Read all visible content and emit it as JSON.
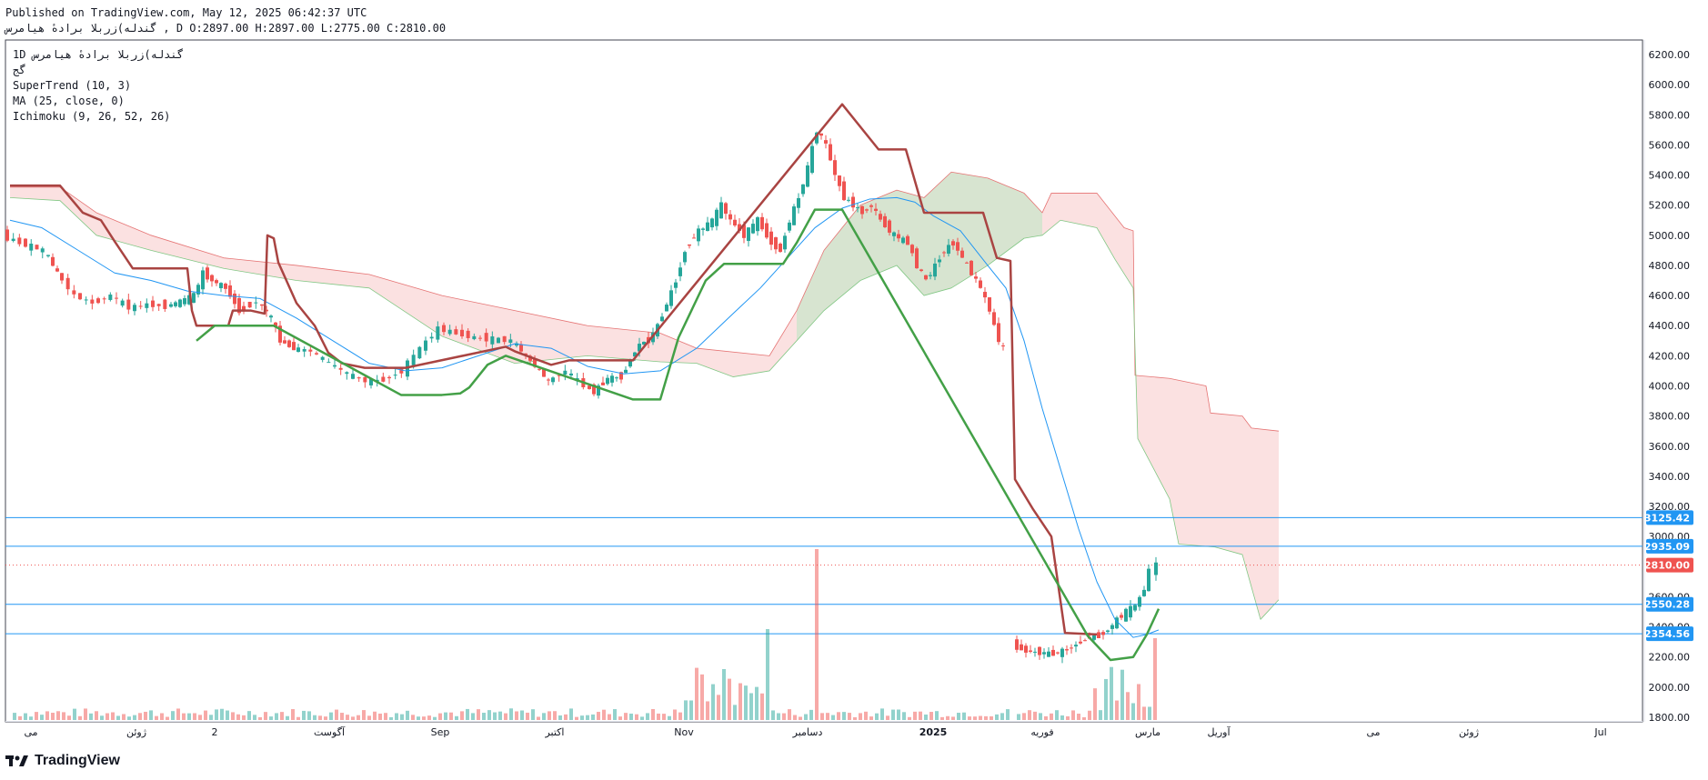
{
  "header": {
    "published": "Published on TradingView.com, May 12, 2025 06:42:37 UTC",
    "symbol_line": "گندله)زربلا برادهٔ هیامرس , D O:2897.00 H:2897.00 L:2775.00 C:2810.00"
  },
  "legend": {
    "symbol": "1D گندله)زربلا برادهٔ هیامرس",
    "market": "گج",
    "indicators": [
      "SuperTrend (10, 3)",
      "MA (25, close, 0)",
      "Ichimoku (9, 26, 52, 26)"
    ]
  },
  "footer": {
    "brand": "TradingView"
  },
  "colors": {
    "up": "#26a69a",
    "down": "#ef5350",
    "supertrend_up": "#43a047",
    "supertrend_down": "#a94442",
    "ma": "#2196f3",
    "cloud_bear": "#f8c9c9",
    "cloud_bull": "#c8e6c9",
    "hline": "#2196f3",
    "last_price": "#ef5350"
  },
  "chart_data": {
    "type": "candlestick",
    "y_axis": {
      "min": 1800,
      "max": 6200,
      "ticks": [
        6200,
        6000,
        5800,
        5600,
        5400,
        5200,
        5000,
        4800,
        4600,
        4400,
        4200,
        4000,
        3800,
        3600,
        3400,
        3200,
        3000,
        2800,
        2600,
        2400,
        2200,
        2000,
        1800
      ]
    },
    "x_axis": {
      "ticks": [
        "می",
        "ژوئن",
        "2",
        "آگوست",
        "Sep",
        "اکتبر",
        "Nov",
        "دسامبر",
        "2025",
        "فوریه",
        "مارس",
        "آوریل",
        "می",
        "ژوئن",
        "Jul"
      ]
    },
    "horizontal_lines": [
      3125.42,
      2935.09,
      2550.28,
      2354.56
    ],
    "price_labels": [
      {
        "value": 3125.42,
        "text": "3125.42"
      },
      {
        "value": 2935.09,
        "text": "2935.09"
      },
      {
        "value": 2810.0,
        "text": "2810.00"
      },
      {
        "value": 2550.28,
        "text": "2550.28"
      },
      {
        "value": 2354.56,
        "text": "2354.56"
      }
    ],
    "last_price": 2810.0,
    "ohlc": {
      "open": 2897.0,
      "high": 2897.0,
      "low": 2775.0,
      "close": 2810.0
    },
    "price_path": [
      [
        0,
        5000
      ],
      [
        20,
        4950
      ],
      [
        45,
        4900
      ],
      [
        60,
        4750
      ],
      [
        80,
        4600
      ],
      [
        100,
        4550
      ],
      [
        120,
        4600
      ],
      [
        140,
        4520
      ],
      [
        160,
        4540
      ],
      [
        180,
        4530
      ],
      [
        195,
        4560
      ],
      [
        210,
        4600
      ],
      [
        220,
        4750
      ],
      [
        230,
        4700
      ],
      [
        245,
        4650
      ],
      [
        260,
        4500
      ],
      [
        280,
        4560
      ],
      [
        295,
        4450
      ],
      [
        305,
        4300
      ],
      [
        320,
        4250
      ],
      [
        340,
        4230
      ],
      [
        360,
        4150
      ],
      [
        380,
        4080
      ],
      [
        400,
        4030
      ],
      [
        420,
        4040
      ],
      [
        440,
        4100
      ],
      [
        460,
        4250
      ],
      [
        480,
        4380
      ],
      [
        500,
        4350
      ],
      [
        520,
        4320
      ],
      [
        540,
        4310
      ],
      [
        560,
        4300
      ],
      [
        575,
        4200
      ],
      [
        590,
        4100
      ],
      [
        600,
        4030
      ],
      [
        620,
        4100
      ],
      [
        640,
        4000
      ],
      [
        650,
        3960
      ],
      [
        665,
        4050
      ],
      [
        680,
        4060
      ],
      [
        690,
        4180
      ],
      [
        700,
        4280
      ],
      [
        710,
        4300
      ],
      [
        720,
        4400
      ],
      [
        730,
        4550
      ],
      [
        740,
        4700
      ],
      [
        750,
        4900
      ],
      [
        760,
        5000
      ],
      [
        770,
        5050
      ],
      [
        780,
        5100
      ],
      [
        790,
        5200
      ],
      [
        800,
        5100
      ],
      [
        815,
        5000
      ],
      [
        830,
        5100
      ],
      [
        845,
        4950
      ],
      [
        855,
        4900
      ],
      [
        865,
        5100
      ],
      [
        875,
        5250
      ],
      [
        885,
        5450
      ],
      [
        895,
        5700
      ],
      [
        905,
        5600
      ],
      [
        915,
        5400
      ],
      [
        925,
        5250
      ],
      [
        935,
        5200
      ],
      [
        945,
        5150
      ],
      [
        955,
        5200
      ],
      [
        965,
        5100
      ],
      [
        980,
        5000
      ],
      [
        995,
        4950
      ],
      [
        1005,
        4800
      ],
      [
        1015,
        4700
      ],
      [
        1025,
        4800
      ],
      [
        1035,
        4900
      ],
      [
        1045,
        4950
      ],
      [
        1055,
        4850
      ],
      [
        1065,
        4750
      ],
      [
        1075,
        4650
      ],
      [
        1085,
        4500
      ],
      [
        1095,
        4300
      ],
      [
        1100,
        4250
      ]
    ],
    "price_path_2": [
      [
        1110,
        2280
      ],
      [
        1125,
        2240
      ],
      [
        1140,
        2230
      ],
      [
        1155,
        2220
      ],
      [
        1170,
        2250
      ],
      [
        1185,
        2300
      ],
      [
        1195,
        2330
      ],
      [
        1205,
        2340
      ],
      [
        1215,
        2380
      ],
      [
        1225,
        2450
      ],
      [
        1235,
        2500
      ],
      [
        1245,
        2540
      ],
      [
        1255,
        2650
      ],
      [
        1263,
        2780
      ],
      [
        1268,
        2810
      ]
    ],
    "supertrend_down": [
      [
        5,
        5330
      ],
      [
        60,
        5330
      ],
      [
        85,
        5150
      ],
      [
        105,
        5100
      ],
      [
        120,
        4960
      ],
      [
        140,
        4780
      ],
      [
        200,
        4780
      ],
      [
        205,
        4500
      ],
      [
        210,
        4400
      ],
      [
        230,
        4400
      ],
      [
        245,
        4400
      ],
      [
        250,
        4500
      ],
      [
        270,
        4500
      ],
      [
        285,
        4480
      ],
      [
        288,
        5000
      ],
      [
        295,
        4980
      ],
      [
        300,
        4820
      ],
      [
        320,
        4550
      ],
      [
        340,
        4400
      ],
      [
        355,
        4220
      ],
      [
        370,
        4150
      ],
      [
        395,
        4120
      ],
      [
        440,
        4120
      ],
      [
        550,
        4260
      ],
      [
        560,
        4230
      ],
      [
        600,
        4140
      ],
      [
        620,
        4170
      ],
      [
        690,
        4170
      ],
      [
        920,
        5870
      ],
      [
        960,
        5570
      ],
      [
        990,
        5570
      ],
      [
        1010,
        5150
      ],
      [
        1075,
        5150
      ],
      [
        1090,
        4850
      ],
      [
        1105,
        4830
      ],
      [
        1110,
        3380
      ],
      [
        1130,
        3180
      ],
      [
        1150,
        3000
      ],
      [
        1165,
        2360
      ],
      [
        1200,
        2350
      ]
    ],
    "supertrend_up": [
      [
        210,
        4300
      ],
      [
        230,
        4400
      ],
      [
        290,
        4400
      ],
      [
        295,
        4400
      ],
      [
        435,
        3940
      ],
      [
        450,
        3940
      ],
      [
        480,
        3940
      ],
      [
        500,
        3950
      ],
      [
        510,
        3990
      ],
      [
        530,
        4140
      ],
      [
        550,
        4200
      ],
      [
        690,
        3910
      ],
      [
        720,
        3910
      ],
      [
        740,
        4320
      ],
      [
        770,
        4700
      ],
      [
        790,
        4810
      ],
      [
        855,
        4810
      ],
      [
        870,
        4950
      ],
      [
        890,
        5170
      ],
      [
        920,
        5170
      ],
      [
        1190,
        2340
      ],
      [
        1215,
        2180
      ],
      [
        1240,
        2200
      ],
      [
        1255,
        2350
      ],
      [
        1268,
        2520
      ]
    ],
    "ma": [
      [
        5,
        5100
      ],
      [
        40,
        5050
      ],
      [
        80,
        4900
      ],
      [
        120,
        4750
      ],
      [
        160,
        4700
      ],
      [
        200,
        4630
      ],
      [
        240,
        4600
      ],
      [
        280,
        4580
      ],
      [
        320,
        4450
      ],
      [
        360,
        4300
      ],
      [
        400,
        4150
      ],
      [
        440,
        4100
      ],
      [
        480,
        4120
      ],
      [
        520,
        4200
      ],
      [
        560,
        4280
      ],
      [
        600,
        4250
      ],
      [
        640,
        4130
      ],
      [
        680,
        4080
      ],
      [
        720,
        4100
      ],
      [
        760,
        4250
      ],
      [
        800,
        4480
      ],
      [
        830,
        4650
      ],
      [
        860,
        4850
      ],
      [
        890,
        5050
      ],
      [
        920,
        5180
      ],
      [
        950,
        5240
      ],
      [
        980,
        5250
      ],
      [
        1000,
        5220
      ],
      [
        1020,
        5130
      ],
      [
        1050,
        5030
      ],
      [
        1080,
        4800
      ],
      [
        1100,
        4650
      ],
      [
        1120,
        4300
      ],
      [
        1140,
        3850
      ],
      [
        1160,
        3450
      ],
      [
        1180,
        3050
      ],
      [
        1200,
        2700
      ],
      [
        1220,
        2450
      ],
      [
        1240,
        2330
      ],
      [
        1255,
        2350
      ],
      [
        1268,
        2380
      ]
    ],
    "cloud": {
      "top": [
        [
          5,
          5320
        ],
        [
          60,
          5320
        ],
        [
          100,
          5150
        ],
        [
          160,
          5000
        ],
        [
          240,
          4850
        ],
        [
          320,
          4800
        ],
        [
          400,
          4740
        ],
        [
          480,
          4600
        ],
        [
          560,
          4500
        ],
        [
          640,
          4400
        ],
        [
          720,
          4350
        ],
        [
          760,
          4250
        ],
        [
          840,
          4200
        ],
        [
          870,
          4500
        ],
        [
          900,
          4900
        ],
        [
          940,
          5200
        ],
        [
          980,
          5300
        ],
        [
          1010,
          5250
        ],
        [
          1040,
          5420
        ],
        [
          1080,
          5380
        ],
        [
          1120,
          5280
        ],
        [
          1140,
          5150
        ],
        [
          1150,
          5280
        ],
        [
          1200,
          5280
        ],
        [
          1230,
          5050
        ],
        [
          1240,
          5030
        ],
        [
          1242,
          4070
        ],
        [
          1280,
          4050
        ],
        [
          1320,
          4000
        ],
        [
          1325,
          3820
        ],
        [
          1360,
          3800
        ],
        [
          1370,
          3720
        ],
        [
          1400,
          3700
        ]
      ],
      "bottom": [
        [
          5,
          5250
        ],
        [
          60,
          5230
        ],
        [
          100,
          5000
        ],
        [
          160,
          4900
        ],
        [
          240,
          4780
        ],
        [
          320,
          4700
        ],
        [
          400,
          4650
        ],
        [
          480,
          4330
        ],
        [
          560,
          4150
        ],
        [
          640,
          4200
        ],
        [
          720,
          4160
        ],
        [
          760,
          4150
        ],
        [
          800,
          4060
        ],
        [
          840,
          4100
        ],
        [
          870,
          4300
        ],
        [
          900,
          4500
        ],
        [
          940,
          4700
        ],
        [
          980,
          4800
        ],
        [
          1010,
          4600
        ],
        [
          1040,
          4650
        ],
        [
          1080,
          4800
        ],
        [
          1120,
          4980
        ],
        [
          1140,
          5000
        ],
        [
          1160,
          5100
        ],
        [
          1200,
          5050
        ],
        [
          1220,
          4840
        ],
        [
          1240,
          4650
        ],
        [
          1245,
          3650
        ],
        [
          1280,
          3250
        ],
        [
          1290,
          2950
        ],
        [
          1330,
          2930
        ],
        [
          1360,
          2880
        ],
        [
          1380,
          2450
        ],
        [
          1400,
          2580
        ]
      ]
    }
  }
}
